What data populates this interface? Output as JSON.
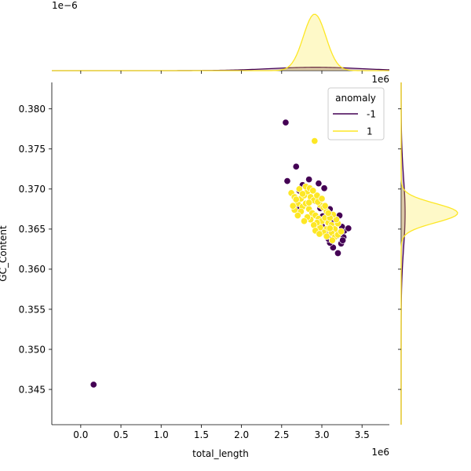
{
  "chart_data": {
    "type": "scatter",
    "subtype": "jointplot",
    "xlabel": "total_length",
    "ylabel": "GC_Content",
    "x_offset_text": "1e6",
    "top_offset_text": "1e6",
    "kde_offset_text": "1e−6",
    "xlim": [
      -0.36,
      3.84
    ],
    "ylim": [
      0.3406,
      0.3833
    ],
    "x_ticks": [
      0.0,
      0.5,
      1.0,
      1.5,
      2.0,
      2.5,
      3.0,
      3.5
    ],
    "x_tick_labels": [
      "0.0",
      "0.5",
      "1.0",
      "1.5",
      "2.0",
      "2.5",
      "3.0",
      "3.5"
    ],
    "y_ticks": [
      0.345,
      0.35,
      0.355,
      0.36,
      0.365,
      0.37,
      0.375,
      0.38
    ],
    "y_tick_labels": [
      "0.345",
      "0.350",
      "0.355",
      "0.360",
      "0.365",
      "0.370",
      "0.375",
      "0.380"
    ],
    "legend": {
      "title": "anomaly",
      "placement": "top-right",
      "entries": [
        {
          "label": "-1",
          "color": "#440154"
        },
        {
          "label": "1",
          "color": "#fde725"
        }
      ]
    },
    "series": [
      {
        "name": "-1",
        "color": "#440154",
        "points": [
          [
            0.16,
            0.3456
          ],
          [
            2.55,
            0.3783
          ],
          [
            2.57,
            0.371
          ],
          [
            2.68,
            0.3728
          ],
          [
            2.76,
            0.3705
          ],
          [
            2.84,
            0.3712
          ],
          [
            2.96,
            0.3707
          ],
          [
            3.03,
            0.3701
          ],
          [
            2.92,
            0.3685
          ],
          [
            3.1,
            0.3675
          ],
          [
            3.22,
            0.3667
          ],
          [
            3.19,
            0.3658
          ],
          [
            3.28,
            0.3648
          ],
          [
            3.33,
            0.3651
          ],
          [
            3.27,
            0.364
          ],
          [
            3.24,
            0.3632
          ],
          [
            3.2,
            0.362
          ],
          [
            3.14,
            0.3627
          ],
          [
            3.1,
            0.3633
          ],
          [
            3.18,
            0.3641
          ],
          [
            3.26,
            0.3636
          ],
          [
            3.08,
            0.3638
          ],
          [
            3.0,
            0.3654
          ],
          [
            3.05,
            0.3648
          ],
          [
            3.15,
            0.3652
          ],
          [
            3.22,
            0.3645
          ],
          [
            3.01,
            0.3666
          ],
          [
            2.98,
            0.3676
          ],
          [
            2.72,
            0.3698
          ],
          [
            2.7,
            0.3675
          ],
          [
            2.88,
            0.3686
          ],
          [
            3.12,
            0.3661
          ],
          [
            3.25,
            0.3653
          ]
        ]
      },
      {
        "name": "1",
        "color": "#fde725",
        "points": [
          [
            2.91,
            0.376
          ],
          [
            2.62,
            0.3695
          ],
          [
            2.66,
            0.369
          ],
          [
            2.7,
            0.3682
          ],
          [
            2.74,
            0.3688
          ],
          [
            2.78,
            0.3692
          ],
          [
            2.82,
            0.3697
          ],
          [
            2.86,
            0.369
          ],
          [
            2.9,
            0.3686
          ],
          [
            2.94,
            0.3692
          ],
          [
            2.98,
            0.368
          ],
          [
            3.02,
            0.3677
          ],
          [
            3.06,
            0.3672
          ],
          [
            2.72,
            0.37
          ],
          [
            2.76,
            0.3678
          ],
          [
            2.8,
            0.3682
          ],
          [
            2.84,
            0.3675
          ],
          [
            2.88,
            0.367
          ],
          [
            2.92,
            0.3667
          ],
          [
            2.96,
            0.3663
          ],
          [
            3.0,
            0.366
          ],
          [
            3.04,
            0.3664
          ],
          [
            3.08,
            0.3658
          ],
          [
            3.12,
            0.3655
          ],
          [
            3.16,
            0.365
          ],
          [
            3.2,
            0.3657
          ],
          [
            3.18,
            0.3662
          ],
          [
            3.14,
            0.3668
          ],
          [
            3.1,
            0.3664
          ],
          [
            3.06,
            0.365
          ],
          [
            3.02,
            0.3646
          ],
          [
            2.98,
            0.3652
          ],
          [
            2.94,
            0.3658
          ],
          [
            2.9,
            0.3655
          ],
          [
            2.86,
            0.3662
          ],
          [
            2.82,
            0.3665
          ],
          [
            2.78,
            0.366
          ],
          [
            2.74,
            0.3672
          ],
          [
            2.7,
            0.3667
          ],
          [
            2.66,
            0.3674
          ],
          [
            2.64,
            0.3679
          ],
          [
            2.68,
            0.3687
          ],
          [
            2.8,
            0.3703
          ],
          [
            2.85,
            0.3701
          ],
          [
            2.89,
            0.3698
          ],
          [
            2.95,
            0.3684
          ],
          [
            3.0,
            0.3688
          ],
          [
            3.04,
            0.3679
          ],
          [
            3.08,
            0.367
          ],
          [
            3.12,
            0.3645
          ],
          [
            3.16,
            0.364
          ],
          [
            3.2,
            0.3643
          ],
          [
            3.24,
            0.3647
          ],
          [
            3.13,
            0.3636
          ],
          [
            3.06,
            0.3641
          ],
          [
            2.92,
            0.3648
          ],
          [
            2.97,
            0.3644
          ],
          [
            3.1,
            0.3651
          ],
          [
            2.84,
            0.3683
          ],
          [
            2.76,
            0.3694
          ]
        ]
      }
    ],
    "marginal_top": [
      {
        "name": "-1",
        "color": "#440154",
        "mean": 2.92,
        "sd": 0.55,
        "peak": 0.06
      },
      {
        "name": "1",
        "color": "#fde725",
        "mean": 2.91,
        "sd": 0.14,
        "peak": 1.0
      }
    ],
    "marginal_right": [
      {
        "name": "-1",
        "color": "#440154",
        "mean": 0.367,
        "sd": 0.0045,
        "peak": 0.07
      },
      {
        "name": "1",
        "color": "#fde725",
        "mean": 0.367,
        "sd": 0.0012,
        "peak": 1.0
      }
    ]
  }
}
